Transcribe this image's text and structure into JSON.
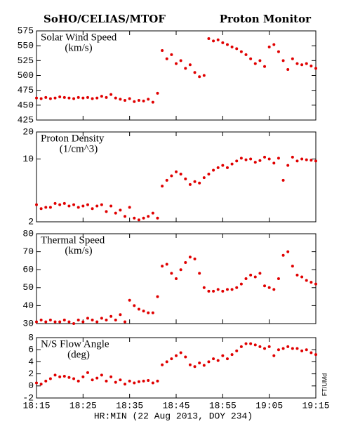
{
  "header": {
    "left": "SoHO/CELIAS/MTOF",
    "right": "Proton Monitor",
    "side_note": "FT/UMd"
  },
  "x_axis": {
    "xlabel": "HR:MIN (22 Aug 2013, DOY 234)",
    "xlim": [
      "18:15",
      "19:15"
    ],
    "xticks": [
      "18:15",
      "18:25",
      "18:35",
      "18:45",
      "18:55",
      "19:05",
      "19:15"
    ],
    "x": [
      "18:15",
      "18:16",
      "18:17",
      "18:18",
      "18:19",
      "18:20",
      "18:21",
      "18:22",
      "18:23",
      "18:24",
      "18:25",
      "18:26",
      "18:27",
      "18:28",
      "18:29",
      "18:30",
      "18:31",
      "18:32",
      "18:33",
      "18:34",
      "18:35",
      "18:36",
      "18:37",
      "18:38",
      "18:39",
      "18:40",
      "18:41",
      "18:42",
      "18:43",
      "18:44",
      "18:45",
      "18:46",
      "18:47",
      "18:48",
      "18:49",
      "18:50",
      "18:51",
      "18:52",
      "18:53",
      "18:54",
      "18:55",
      "18:56",
      "18:57",
      "18:58",
      "18:59",
      "19:00",
      "19:01",
      "19:02",
      "19:03",
      "19:04",
      "19:05",
      "19:06",
      "19:07",
      "19:08",
      "19:09",
      "19:10",
      "19:11",
      "19:12",
      "19:13",
      "19:14",
      "19:15"
    ]
  },
  "chart_data": [
    {
      "type": "scatter",
      "label": [
        "Solar Wind Speed",
        "(km/s)"
      ],
      "color": "#e00000",
      "scale": "linear",
      "ylim": [
        425,
        575
      ],
      "yticks": [
        425,
        450,
        475,
        500,
        525,
        550,
        575
      ],
      "values": [
        462,
        461,
        463,
        461,
        462,
        464,
        463,
        462,
        461,
        463,
        462,
        463,
        461,
        462,
        465,
        463,
        468,
        462,
        460,
        458,
        461,
        456,
        458,
        457,
        460,
        455,
        470,
        542,
        528,
        535,
        520,
        525,
        512,
        518,
        505,
        498,
        500,
        562,
        558,
        560,
        555,
        552,
        548,
        545,
        540,
        535,
        528,
        520,
        525,
        515,
        548,
        552,
        540,
        525,
        510,
        528,
        520,
        518,
        520,
        516,
        512
      ]
    },
    {
      "type": "scatter",
      "label": [
        "Proton Density",
        "(1/cm^3)"
      ],
      "color": "#e00000",
      "scale": "log",
      "ylim": [
        2,
        20
      ],
      "yticks": [
        2,
        10,
        20
      ],
      "values": [
        3.1,
        2.8,
        2.9,
        2.9,
        3.2,
        3.1,
        3.2,
        3.0,
        3.1,
        2.9,
        3.0,
        3.1,
        2.8,
        3.0,
        3.1,
        2.6,
        3.0,
        2.5,
        2.7,
        2.3,
        2.9,
        2.2,
        2.1,
        2.2,
        2.3,
        2.5,
        2.2,
        5.0,
        5.8,
        6.5,
        7.2,
        6.8,
        6.0,
        5.2,
        5.6,
        5.4,
        6.2,
        6.8,
        7.5,
        8.0,
        8.5,
        8.0,
        8.8,
        9.5,
        10.2,
        9.8,
        10.0,
        9.2,
        9.6,
        10.5,
        10.0,
        9.0,
        10.2,
        5.8,
        8.5,
        10.5,
        9.5,
        10.0,
        9.8,
        9.7,
        9.5
      ]
    },
    {
      "type": "scatter",
      "label": [
        "Thermal Speed",
        "(km/s)"
      ],
      "color": "#e00000",
      "scale": "linear",
      "ylim": [
        30,
        80
      ],
      "yticks": [
        30,
        40,
        50,
        60,
        70,
        80
      ],
      "values": [
        31,
        32,
        31,
        32,
        31,
        31,
        32,
        31,
        30,
        32,
        31,
        33,
        32,
        31,
        33,
        32,
        34,
        32,
        35,
        31,
        43,
        40,
        38,
        37,
        36,
        36,
        45,
        62,
        63,
        58,
        55,
        60,
        64,
        67,
        66,
        58,
        50,
        48,
        48,
        49,
        48,
        49,
        49,
        50,
        52,
        55,
        57,
        56,
        58,
        51,
        50,
        49,
        55,
        68,
        70,
        62,
        57,
        56,
        54,
        53,
        52
      ]
    },
    {
      "type": "scatter",
      "label": [
        "N/S Flow Angle",
        "(deg)"
      ],
      "color": "#e00000",
      "scale": "linear",
      "ylim": [
        -2,
        8
      ],
      "yticks": [
        -2,
        0,
        2,
        4,
        6,
        8
      ],
      "values": [
        0.5,
        0.3,
        0.8,
        1.2,
        1.8,
        1.5,
        1.6,
        1.4,
        1.2,
        0.8,
        1.5,
        2.2,
        1.0,
        1.3,
        1.8,
        0.8,
        1.5,
        0.6,
        1.0,
        0.3,
        0.8,
        0.5,
        0.7,
        0.8,
        0.9,
        0.5,
        0.8,
        3.5,
        4.0,
        4.5,
        5.0,
        5.5,
        4.8,
        3.5,
        3.2,
        3.8,
        3.4,
        4.0,
        4.5,
        4.2,
        5.0,
        4.5,
        5.2,
        5.8,
        6.5,
        7.0,
        7.0,
        6.8,
        6.5,
        6.2,
        6.5,
        5.0,
        6.0,
        6.2,
        6.5,
        6.2,
        6.2,
        5.8,
        6.0,
        5.5,
        5.2
      ]
    }
  ]
}
